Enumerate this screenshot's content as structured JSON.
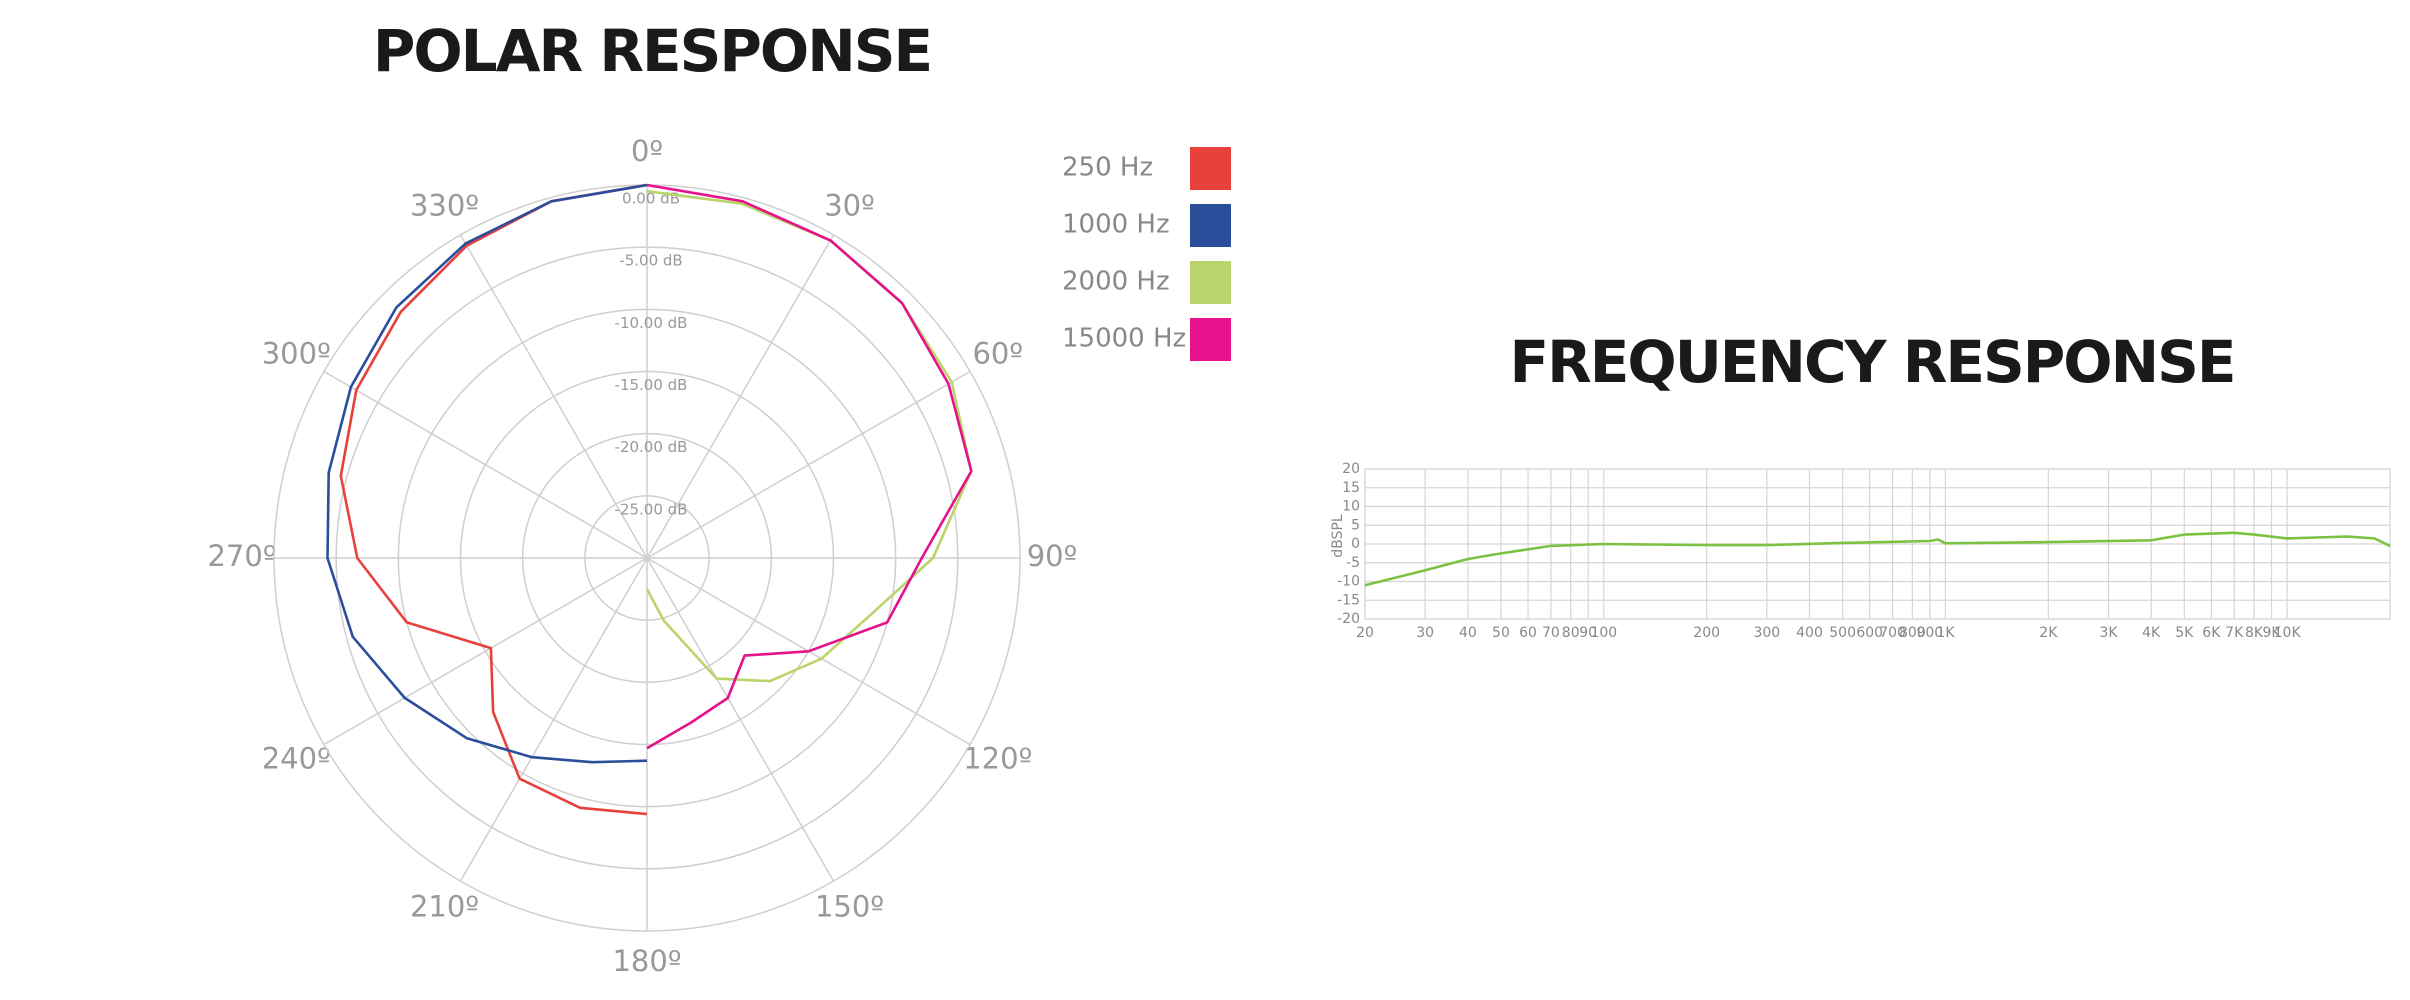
{
  "chart_data": [
    {
      "type": "polar",
      "title": "POLAR RESPONSE",
      "rlim": [
        -30,
        0
      ],
      "rticks": [
        {
          "value": 0,
          "label": "0.00 dB"
        },
        {
          "value": -5,
          "label": "-5.00 dB"
        },
        {
          "value": -10,
          "label": "-10.00 dB"
        },
        {
          "value": -15,
          "label": "-15.00 dB"
        },
        {
          "value": -20,
          "label": "-20.00 dB"
        },
        {
          "value": -25,
          "label": "-25.00 dB"
        }
      ],
      "angleticks": [
        {
          "value": 0,
          "label": "0º"
        },
        {
          "value": 30,
          "label": "30º"
        },
        {
          "value": 60,
          "label": "60º"
        },
        {
          "value": 90,
          "label": "90º"
        },
        {
          "value": 120,
          "label": "120º"
        },
        {
          "value": 150,
          "label": "150º"
        },
        {
          "value": 180,
          "label": "180º"
        },
        {
          "value": 210,
          "label": "210º"
        },
        {
          "value": 240,
          "label": "240º"
        },
        {
          "value": 270,
          "label": "270º"
        },
        {
          "value": 300,
          "label": "300º"
        },
        {
          "value": 330,
          "label": "330º"
        }
      ],
      "series": [
        {
          "name": "250 Hz",
          "color": "#e8413c",
          "theta": [
            180,
            195,
            210,
            225,
            240,
            255,
            270,
            285,
            300,
            315,
            330,
            345,
            360
          ],
          "values": [
            -9.4,
            -9.2,
            -9.5,
            -12.5,
            -15.5,
            -10,
            -6.7,
            -4.5,
            -3,
            -2,
            -1,
            -0.3,
            0
          ]
        },
        {
          "name": "1000 Hz",
          "color": "#2b4e9b",
          "theta": [
            180,
            195,
            210,
            225,
            240,
            255,
            270,
            285,
            300,
            315,
            330,
            345,
            360
          ],
          "values": [
            -13.7,
            -13,
            -11.5,
            -9.5,
            -7.5,
            -5.5,
            -4.3,
            -3.5,
            -2.5,
            -1.5,
            -0.8,
            -0.3,
            0
          ]
        },
        {
          "name": "2000 Hz",
          "color": "#b9d46a",
          "theta": [
            0,
            15,
            30,
            45,
            60,
            75,
            90,
            105,
            120,
            135,
            150,
            165,
            180
          ],
          "values": [
            -0.5,
            -0.5,
            -0.5,
            -1,
            -1.7,
            -3,
            -7,
            -11.6,
            -13.8,
            -16,
            -18.8,
            -24.8,
            -27.5
          ]
        },
        {
          "name": "15000 Hz",
          "color": "#e5128c",
          "theta": [
            0,
            15,
            30,
            45,
            60,
            75,
            90,
            105,
            120,
            135,
            150,
            165,
            180
          ],
          "values": [
            0,
            -0.3,
            -0.5,
            -1,
            -2,
            -3,
            -7.9,
            -10,
            -15,
            -18.9,
            -17,
            -16.3,
            -14.7
          ]
        }
      ]
    },
    {
      "type": "line",
      "title": "FREQUENCY RESPONSE",
      "ylabel": "dBSPL",
      "log_x": true,
      "grid": true,
      "xlim": [
        20,
        20000
      ],
      "ylim": [
        -20,
        20
      ],
      "xticks": [
        20,
        30,
        40,
        50,
        60,
        70,
        80,
        90,
        100,
        200,
        300,
        400,
        500,
        600,
        700,
        800,
        900,
        {
          "value": 1000,
          "label": "1K"
        },
        {
          "value": 2000,
          "label": "2K"
        },
        {
          "value": 3000,
          "label": "3K"
        },
        {
          "value": 4000,
          "label": "4K"
        },
        {
          "value": 5000,
          "label": "5K"
        },
        {
          "value": 6000,
          "label": "6K"
        },
        {
          "value": 7000,
          "label": "7K"
        },
        {
          "value": 8000,
          "label": "8K"
        },
        {
          "value": 9000,
          "label": "9K"
        },
        {
          "value": 10000,
          "label": "10K"
        }
      ],
      "yticks": [
        20,
        15,
        10,
        5,
        0,
        -5,
        -10,
        -15,
        -20
      ],
      "series": [
        {
          "color": "#7cc242",
          "x": [
            20,
            30,
            40,
            50,
            70,
            100,
            200,
            300,
            500,
            900,
            950,
            1000,
            2000,
            4000,
            5000,
            7000,
            8000,
            10000,
            15000,
            18000,
            20000
          ],
          "values": [
            -11,
            -7,
            -4,
            -2.5,
            -0.5,
            0,
            -0.3,
            -0.3,
            0.3,
            0.8,
            1.2,
            0.2,
            0.5,
            1,
            2.5,
            3,
            2.5,
            1.5,
            2,
            1.5,
            -0.5
          ]
        }
      ]
    }
  ]
}
